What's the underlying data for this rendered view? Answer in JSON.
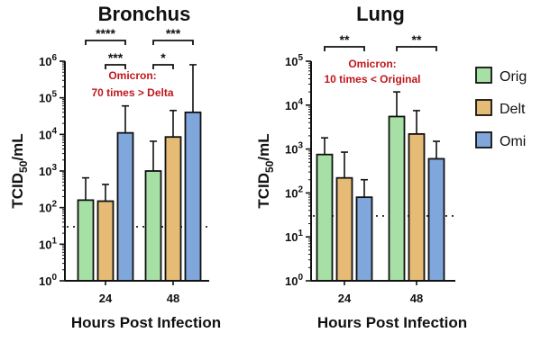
{
  "colors": {
    "original": "#a7e0a5",
    "delta": "#e5bb75",
    "omicron": "#7fa7dc",
    "annotation": "#c0171c"
  },
  "chart_data": [
    {
      "type": "bar",
      "title": "Bronchus",
      "xlabel": "Hours Post Infection",
      "ylabel_main": "TCID",
      "ylabel_sub": "50",
      "ylabel_unit": "/mL",
      "y_scale": "log",
      "ylim": [
        1,
        1000000
      ],
      "categories": [
        "24",
        "48"
      ],
      "series": [
        {
          "name": "Original",
          "values": [
            160,
            1000
          ],
          "error_upper": [
            650,
            6500
          ]
        },
        {
          "name": "Delta",
          "values": [
            150,
            8500
          ],
          "error_upper": [
            430,
            45000
          ]
        },
        {
          "name": "Omicron",
          "values": [
            11000,
            40000
          ],
          "error_upper": [
            60000,
            800000
          ]
        }
      ],
      "limit_of_detection": 30,
      "annotation": {
        "line1": "Omicron:",
        "line2": "70 times > Delta"
      },
      "significance": [
        {
          "label": "****",
          "group": 0,
          "from": 0,
          "to": 2,
          "level": 0
        },
        {
          "label": "***",
          "group": 0,
          "from": 1,
          "to": 2,
          "level": 1
        },
        {
          "label": "***",
          "group": 1,
          "from": 0,
          "to": 2,
          "level": 0
        },
        {
          "label": "*",
          "group": 1,
          "from": 0,
          "to": 1,
          "level": 1
        }
      ]
    },
    {
      "type": "bar",
      "title": "Lung",
      "xlabel": "Hours Post Infection",
      "ylabel_main": "TCID",
      "ylabel_sub": "50",
      "ylabel_unit": "/mL",
      "y_scale": "log",
      "ylim": [
        1,
        100000
      ],
      "categories": [
        "24",
        "48"
      ],
      "series": [
        {
          "name": "Original",
          "values": [
            750,
            5500
          ],
          "error_upper": [
            1800,
            20000
          ]
        },
        {
          "name": "Delta",
          "values": [
            220,
            2200
          ],
          "error_upper": [
            850,
            7500
          ]
        },
        {
          "name": "Omicron",
          "values": [
            80,
            600
          ],
          "error_upper": [
            200,
            1500
          ]
        }
      ],
      "limit_of_detection": 30,
      "annotation": {
        "line1": "Omicron:",
        "line2": "10 times < Original"
      },
      "significance": [
        {
          "label": "**",
          "group": 0,
          "from": 0,
          "to": 2,
          "level": 0
        },
        {
          "label": "**",
          "group": 1,
          "from": 0,
          "to": 2,
          "level": 0
        }
      ]
    }
  ],
  "legend": {
    "items": [
      {
        "label": "Orig",
        "series": "Original"
      },
      {
        "label": "Delt",
        "series": "Delta"
      },
      {
        "label": "Omi",
        "series": "Omicron"
      }
    ]
  }
}
